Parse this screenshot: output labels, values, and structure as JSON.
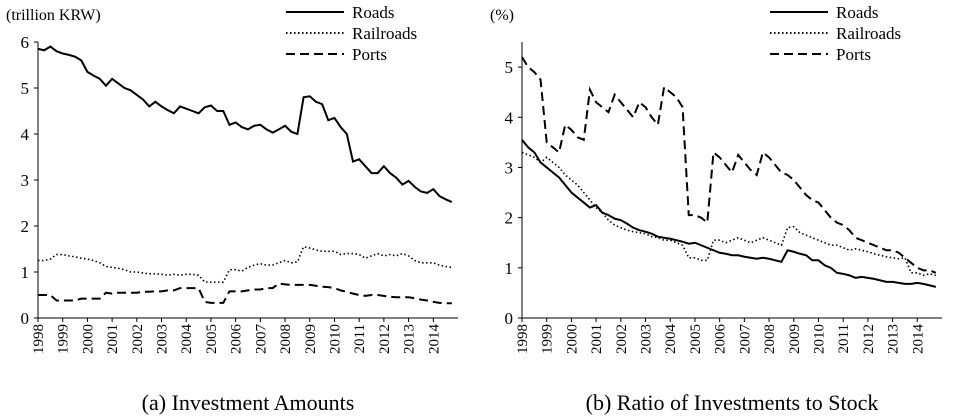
{
  "chart_data": [
    {
      "type": "line",
      "y_label": "(trillion KRW)",
      "caption": "(a) Investment Amounts",
      "categories": [
        "1998",
        null,
        null,
        null,
        "1999",
        null,
        null,
        null,
        "2000",
        null,
        null,
        null,
        "2001",
        null,
        null,
        null,
        "2002",
        null,
        null,
        null,
        "2003",
        null,
        null,
        null,
        "2004",
        null,
        null,
        null,
        "2005",
        null,
        null,
        null,
        "2006",
        null,
        null,
        null,
        "2007",
        null,
        null,
        null,
        "2008",
        null,
        null,
        null,
        "2009",
        null,
        null,
        null,
        "2010",
        null,
        null,
        null,
        "2011",
        null,
        null,
        null,
        "2012",
        null,
        null,
        null,
        "2013",
        null,
        null,
        null,
        "2014",
        null,
        null,
        null
      ],
      "ylim": [
        0,
        6
      ],
      "yticks": [
        0,
        1,
        2,
        3,
        4,
        5,
        6
      ],
      "legend": "top-right",
      "series": [
        {
          "name": "Roads",
          "color": "#000000",
          "style": "solid",
          "values": [
            5.85,
            5.82,
            5.9,
            5.8,
            5.75,
            5.72,
            5.68,
            5.6,
            5.35,
            5.27,
            5.2,
            5.05,
            5.2,
            5.1,
            5.0,
            4.95,
            4.85,
            4.75,
            4.6,
            4.7,
            4.6,
            4.52,
            4.45,
            4.6,
            4.55,
            4.5,
            4.45,
            4.58,
            4.62,
            4.5,
            4.5,
            4.2,
            4.25,
            4.15,
            4.1,
            4.18,
            4.2,
            4.1,
            4.03,
            4.1,
            4.18,
            4.05,
            4.0,
            4.8,
            4.82,
            4.7,
            4.65,
            4.3,
            4.35,
            4.15,
            4.0,
            3.4,
            3.45,
            3.3,
            3.15,
            3.15,
            3.3,
            3.15,
            3.05,
            2.9,
            2.98,
            2.85,
            2.75,
            2.72,
            2.8,
            2.65,
            2.58,
            2.52
          ]
        },
        {
          "name": "Railroads",
          "color": "#000000",
          "style": "dotted",
          "values": [
            1.25,
            1.25,
            1.28,
            1.38,
            1.38,
            1.35,
            1.33,
            1.3,
            1.28,
            1.25,
            1.2,
            1.12,
            1.1,
            1.08,
            1.05,
            1.0,
            1.0,
            0.98,
            0.96,
            0.96,
            0.95,
            0.93,
            0.95,
            0.93,
            0.95,
            0.95,
            0.93,
            0.78,
            0.78,
            0.78,
            0.78,
            1.05,
            1.05,
            1.02,
            1.1,
            1.15,
            1.18,
            1.15,
            1.15,
            1.2,
            1.25,
            1.2,
            1.22,
            1.55,
            1.52,
            1.48,
            1.45,
            1.45,
            1.45,
            1.38,
            1.4,
            1.4,
            1.38,
            1.3,
            1.35,
            1.4,
            1.35,
            1.38,
            1.35,
            1.4,
            1.35,
            1.25,
            1.2,
            1.2,
            1.2,
            1.15,
            1.12,
            1.1
          ]
        },
        {
          "name": "Ports",
          "color": "#000000",
          "style": "dashed",
          "values": [
            0.5,
            0.5,
            0.5,
            0.38,
            0.38,
            0.38,
            0.38,
            0.42,
            0.42,
            0.42,
            0.42,
            0.55,
            0.53,
            0.55,
            0.55,
            0.55,
            0.55,
            0.57,
            0.57,
            0.58,
            0.58,
            0.6,
            0.6,
            0.65,
            0.65,
            0.65,
            0.65,
            0.35,
            0.33,
            0.33,
            0.33,
            0.58,
            0.58,
            0.58,
            0.6,
            0.62,
            0.62,
            0.65,
            0.65,
            0.75,
            0.73,
            0.72,
            0.72,
            0.72,
            0.72,
            0.7,
            0.68,
            0.67,
            0.65,
            0.6,
            0.57,
            0.53,
            0.5,
            0.48,
            0.5,
            0.5,
            0.48,
            0.46,
            0.45,
            0.45,
            0.45,
            0.43,
            0.4,
            0.38,
            0.35,
            0.33,
            0.32,
            0.32
          ]
        }
      ]
    },
    {
      "type": "line",
      "y_label": "(%)",
      "caption": "(b) Ratio of Investments to Stock",
      "categories": [
        "1998",
        null,
        null,
        null,
        "1999",
        null,
        null,
        null,
        "2000",
        null,
        null,
        null,
        "2001",
        null,
        null,
        null,
        "2002",
        null,
        null,
        null,
        "2003",
        null,
        null,
        null,
        "2004",
        null,
        null,
        null,
        "2005",
        null,
        null,
        null,
        "2006",
        null,
        null,
        null,
        "2007",
        null,
        null,
        null,
        "2008",
        null,
        null,
        null,
        "2009",
        null,
        null,
        null,
        "2010",
        null,
        null,
        null,
        "2011",
        null,
        null,
        null,
        "2012",
        null,
        null,
        null,
        "2013",
        null,
        null,
        null,
        "2014",
        null,
        null,
        null
      ],
      "ylim": [
        0,
        5.5
      ],
      "yticks": [
        0,
        1,
        2,
        3,
        4,
        5
      ],
      "legend": "top-right",
      "series": [
        {
          "name": "Roads",
          "color": "#000000",
          "style": "solid",
          "values": [
            3.55,
            3.4,
            3.3,
            3.1,
            3.0,
            2.9,
            2.8,
            2.65,
            2.5,
            2.4,
            2.3,
            2.2,
            2.25,
            2.1,
            2.05,
            1.98,
            1.95,
            1.88,
            1.8,
            1.75,
            1.72,
            1.68,
            1.62,
            1.6,
            1.58,
            1.55,
            1.52,
            1.48,
            1.5,
            1.45,
            1.4,
            1.35,
            1.3,
            1.28,
            1.25,
            1.25,
            1.22,
            1.2,
            1.18,
            1.2,
            1.18,
            1.15,
            1.12,
            1.35,
            1.32,
            1.28,
            1.25,
            1.15,
            1.15,
            1.05,
            1.0,
            0.9,
            0.88,
            0.85,
            0.8,
            0.82,
            0.8,
            0.78,
            0.75,
            0.72,
            0.72,
            0.7,
            0.68,
            0.68,
            0.7,
            0.68,
            0.65,
            0.62
          ]
        },
        {
          "name": "Railroads",
          "color": "#000000",
          "style": "dotted",
          "values": [
            3.3,
            3.25,
            3.2,
            3.1,
            3.2,
            3.1,
            3.0,
            2.85,
            2.75,
            2.65,
            2.5,
            2.35,
            2.2,
            2.1,
            1.95,
            1.85,
            1.8,
            1.75,
            1.72,
            1.7,
            1.68,
            1.62,
            1.6,
            1.55,
            1.55,
            1.5,
            1.45,
            1.2,
            1.2,
            1.15,
            1.15,
            1.55,
            1.55,
            1.5,
            1.55,
            1.6,
            1.55,
            1.5,
            1.55,
            1.6,
            1.55,
            1.5,
            1.45,
            1.8,
            1.82,
            1.7,
            1.65,
            1.6,
            1.55,
            1.5,
            1.45,
            1.45,
            1.4,
            1.35,
            1.38,
            1.35,
            1.32,
            1.28,
            1.25,
            1.22,
            1.2,
            1.18,
            1.2,
            0.9,
            0.9,
            0.85,
            0.88,
            0.85
          ]
        },
        {
          "name": "Ports",
          "color": "#000000",
          "style": "dashed",
          "values": [
            5.2,
            5.0,
            4.9,
            4.75,
            3.5,
            3.4,
            3.3,
            3.85,
            3.75,
            3.6,
            3.55,
            4.55,
            4.3,
            4.2,
            4.1,
            4.45,
            4.3,
            4.15,
            4.0,
            4.3,
            4.2,
            4.0,
            3.85,
            4.6,
            4.5,
            4.4,
            4.2,
            2.05,
            2.05,
            2.0,
            1.9,
            3.3,
            3.2,
            3.05,
            2.9,
            3.25,
            3.1,
            2.95,
            2.85,
            3.3,
            3.2,
            3.05,
            2.9,
            2.85,
            2.75,
            2.6,
            2.45,
            2.35,
            2.3,
            2.15,
            2.0,
            1.9,
            1.85,
            1.75,
            1.6,
            1.55,
            1.5,
            1.45,
            1.4,
            1.35,
            1.35,
            1.3,
            1.2,
            1.1,
            1.0,
            0.95,
            0.95,
            0.9
          ]
        }
      ]
    }
  ]
}
